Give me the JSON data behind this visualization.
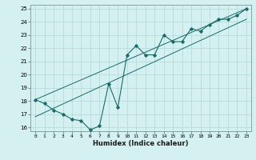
{
  "xlabel": "Humidex (Indice chaleur)",
  "bg_color": "#d4f0f0",
  "line_color": "#1a6b6b",
  "grid_color": "#b0d8d8",
  "xlim": [
    -0.5,
    23.5
  ],
  "ylim": [
    15.7,
    25.3
  ],
  "xticks": [
    0,
    1,
    2,
    3,
    4,
    5,
    6,
    7,
    8,
    9,
    10,
    11,
    12,
    13,
    14,
    15,
    16,
    17,
    18,
    19,
    20,
    21,
    22,
    23
  ],
  "yticks": [
    16,
    17,
    18,
    19,
    20,
    21,
    22,
    23,
    24,
    25
  ],
  "line1_x": [
    0,
    1,
    2,
    3,
    4,
    5,
    6,
    7,
    8,
    9,
    10,
    11,
    12,
    13,
    14,
    15,
    16,
    17,
    18,
    19,
    20,
    21,
    22,
    23
  ],
  "line1_y": [
    18.1,
    17.8,
    17.3,
    17.0,
    16.6,
    16.5,
    15.8,
    16.1,
    19.3,
    17.5,
    21.5,
    22.2,
    21.5,
    21.5,
    23.0,
    22.5,
    22.5,
    23.5,
    23.3,
    23.8,
    24.2,
    24.2,
    24.5,
    25.0
  ],
  "line2_x": [
    0,
    23
  ],
  "line2_y": [
    18.1,
    25.0
  ],
  "line3_x": [
    0,
    23
  ],
  "line3_y": [
    16.8,
    24.2
  ]
}
